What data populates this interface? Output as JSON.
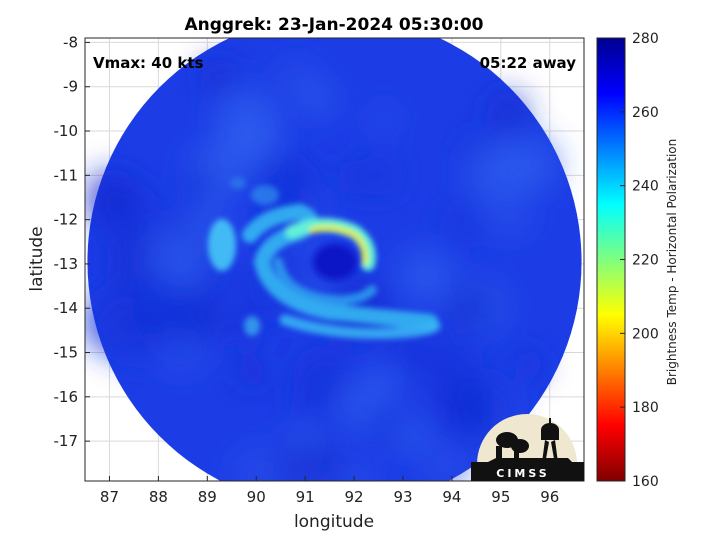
{
  "chart_data": {
    "type": "heatmap",
    "title": "Anggrek: 23-Jan-2024 05:30:00",
    "xlabel": "longitude",
    "ylabel": "latitude",
    "xlim": [
      86.5,
      96.7
    ],
    "ylim": [
      -17.9,
      -7.9
    ],
    "xticks": [
      87,
      88,
      89,
      90,
      91,
      92,
      93,
      94,
      95,
      96
    ],
    "yticks": [
      -8,
      -9,
      -10,
      -11,
      -12,
      -13,
      -14,
      -15,
      -16,
      -17
    ],
    "grid": true,
    "annotations": {
      "top_left": "Vmax: 40 kts",
      "top_right": "05:22 away"
    },
    "colorbar": {
      "label": "Brightness Temp - Horizontal Polarization",
      "min": 160,
      "max": 280,
      "ticks": [
        280,
        260,
        240,
        220,
        200,
        180,
        160
      ],
      "colormap": "jet"
    },
    "field": {
      "background_value": 263,
      "swath_center": [
        91.6,
        -12.95
      ],
      "swath_radius_deg": 5.05,
      "storm_center": [
        91.75,
        -13.0
      ],
      "features": [
        {
          "feature": "eyewall arc",
          "center": [
            91.6,
            -12.95
          ],
          "radius": 0.72,
          "value_min": 212,
          "value_max": 235
        },
        {
          "feature": "eye",
          "center": [
            91.75,
            -13.05
          ],
          "value": 268
        },
        {
          "feature": "outer spiral band",
          "center": [
            91.2,
            -13.3
          ],
          "value_min": 238,
          "value_max": 248
        },
        {
          "feature": "southern band",
          "center": [
            91.3,
            -14.6
          ],
          "value_min": 240,
          "value_max": 250
        },
        {
          "feature": "western rainband",
          "center": [
            89.5,
            -12.6
          ],
          "value_min": 240,
          "value_max": 250
        }
      ]
    }
  },
  "logo": {
    "text": "CIMSS"
  }
}
